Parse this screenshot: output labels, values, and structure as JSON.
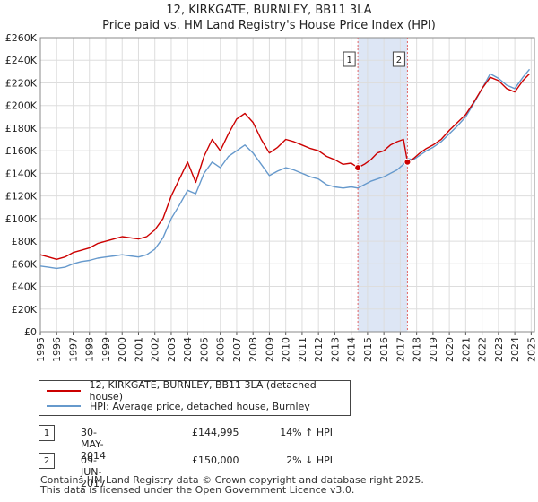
{
  "title_line1": "12, KIRKGATE, BURNLEY, BB11 3LA",
  "title_line2": "Price paid vs. HM Land Registry's House Price Index (HPI)",
  "colors": {
    "property": "#cc0000",
    "hpi": "#6699cc",
    "band": "#dde6f5",
    "marker_line": "#e06666"
  },
  "chart_data": {
    "type": "line",
    "title": "Price paid vs. HM Land Registry's House Price Index (HPI)",
    "xlabel": "",
    "ylabel": "",
    "xlim": [
      1995,
      2025.2
    ],
    "ylim": [
      0,
      260000
    ],
    "yticks": [
      0,
      20000,
      40000,
      60000,
      80000,
      100000,
      120000,
      140000,
      160000,
      180000,
      200000,
      220000,
      240000,
      260000
    ],
    "ytick_labels": [
      "£0",
      "£20K",
      "£40K",
      "£60K",
      "£80K",
      "£100K",
      "£120K",
      "£140K",
      "£160K",
      "£180K",
      "£200K",
      "£220K",
      "£240K",
      "£260K"
    ],
    "xticks": [
      1995,
      1996,
      1997,
      1998,
      1999,
      2000,
      2001,
      2002,
      2003,
      2004,
      2005,
      2006,
      2007,
      2008,
      2009,
      2010,
      2011,
      2012,
      2013,
      2014,
      2015,
      2016,
      2017,
      2018,
      2019,
      2020,
      2021,
      2022,
      2023,
      2024,
      2025
    ],
    "xtick_labels": [
      "1995",
      "1996",
      "1997",
      "1998",
      "1999",
      "2000",
      "2001",
      "2002",
      "2003",
      "2004",
      "2005",
      "2006",
      "2007",
      "2008",
      "2009",
      "2010",
      "2011",
      "2012",
      "2013",
      "2014",
      "2015",
      "2016",
      "2017",
      "2018",
      "2019",
      "2020",
      "2021",
      "2022",
      "2023",
      "2024",
      "2025"
    ],
    "grid": true,
    "shaded_range": [
      2014.41,
      2017.44
    ],
    "series": [
      {
        "name": "12, KIRKGATE, BURNLEY, BB11 3LA (detached house)",
        "x": [
          1995.0,
          1995.5,
          1996.0,
          1996.5,
          1997.0,
          1997.5,
          1998.0,
          1998.5,
          1999.0,
          1999.5,
          2000.0,
          2000.5,
          2001.0,
          2001.5,
          2002.0,
          2002.5,
          2003.0,
          2003.5,
          2004.0,
          2004.5,
          2005.0,
          2005.5,
          2006.0,
          2006.5,
          2007.0,
          2007.5,
          2008.0,
          2008.5,
          2009.0,
          2009.5,
          2010.0,
          2010.5,
          2011.0,
          2011.5,
          2012.0,
          2012.5,
          2013.0,
          2013.5,
          2014.0,
          2014.41,
          2014.8,
          2015.2,
          2015.6,
          2016.0,
          2016.4,
          2016.8,
          2017.2,
          2017.44,
          2017.8,
          2018.2,
          2018.6,
          2019.0,
          2019.5,
          2020.0,
          2020.5,
          2021.0,
          2021.5,
          2022.0,
          2022.5,
          2023.0,
          2023.5,
          2024.0,
          2024.5,
          2024.9
        ],
        "values": [
          68000,
          66000,
          64000,
          66000,
          70000,
          72000,
          74000,
          78000,
          80000,
          82000,
          84000,
          83000,
          82000,
          84000,
          90000,
          100000,
          120000,
          135000,
          150000,
          132000,
          155000,
          170000,
          160000,
          175000,
          188000,
          193000,
          185000,
          170000,
          158000,
          163000,
          170000,
          168000,
          165000,
          162000,
          160000,
          155000,
          152000,
          148000,
          149000,
          144995,
          148000,
          152000,
          158000,
          160000,
          165000,
          168000,
          170000,
          150000,
          153000,
          158000,
          162000,
          165000,
          170000,
          178000,
          185000,
          192000,
          203000,
          215000,
          225000,
          222000,
          215000,
          212000,
          222000,
          228000
        ]
      },
      {
        "name": "HPI: Average price, detached house, Burnley",
        "x": [
          1995.0,
          1995.5,
          1996.0,
          1996.5,
          1997.0,
          1997.5,
          1998.0,
          1998.5,
          1999.0,
          1999.5,
          2000.0,
          2000.5,
          2001.0,
          2001.5,
          2002.0,
          2002.5,
          2003.0,
          2003.5,
          2004.0,
          2004.5,
          2005.0,
          2005.5,
          2006.0,
          2006.5,
          2007.0,
          2007.5,
          2008.0,
          2008.5,
          2009.0,
          2009.5,
          2010.0,
          2010.5,
          2011.0,
          2011.5,
          2012.0,
          2012.5,
          2013.0,
          2013.5,
          2014.0,
          2014.41,
          2014.8,
          2015.2,
          2015.6,
          2016.0,
          2016.4,
          2016.8,
          2017.2,
          2017.44,
          2017.8,
          2018.2,
          2018.6,
          2019.0,
          2019.5,
          2020.0,
          2020.5,
          2021.0,
          2021.5,
          2022.0,
          2022.5,
          2023.0,
          2023.5,
          2024.0,
          2024.5,
          2024.9
        ],
        "values": [
          58000,
          57000,
          56000,
          57000,
          60000,
          62000,
          63000,
          65000,
          66000,
          67000,
          68000,
          67000,
          66000,
          68000,
          73000,
          83000,
          100000,
          112000,
          125000,
          122000,
          140000,
          150000,
          145000,
          155000,
          160000,
          165000,
          158000,
          148000,
          138000,
          142000,
          145000,
          143000,
          140000,
          137000,
          135000,
          130000,
          128000,
          127000,
          128000,
          127000,
          130000,
          133000,
          135000,
          137000,
          140000,
          143000,
          148000,
          153000,
          152000,
          156000,
          160000,
          163000,
          168000,
          175000,
          182000,
          190000,
          202000,
          215000,
          228000,
          224000,
          218000,
          215000,
          225000,
          232000
        ]
      }
    ],
    "sales": [
      {
        "label": "1",
        "x": 2014.41,
        "value": 144995
      },
      {
        "label": "2",
        "x": 2017.44,
        "value": 150000
      }
    ]
  },
  "legend": {
    "property_label": "12, KIRKGATE, BURNLEY, BB11 3LA (detached house)",
    "hpi_label": "HPI: Average price, detached house, Burnley"
  },
  "annotations": [
    {
      "num": "1",
      "date": "30-MAY-2014",
      "price": "£144,995",
      "hpi": "14% ↑ HPI"
    },
    {
      "num": "2",
      "date": "09-JUN-2017",
      "price": "£150,000",
      "hpi": "2% ↓ HPI"
    }
  ],
  "footer": {
    "line1": "Contains HM Land Registry data © Crown copyright and database right 2025.",
    "line2": "This data is licensed under the Open Government Licence v3.0."
  }
}
